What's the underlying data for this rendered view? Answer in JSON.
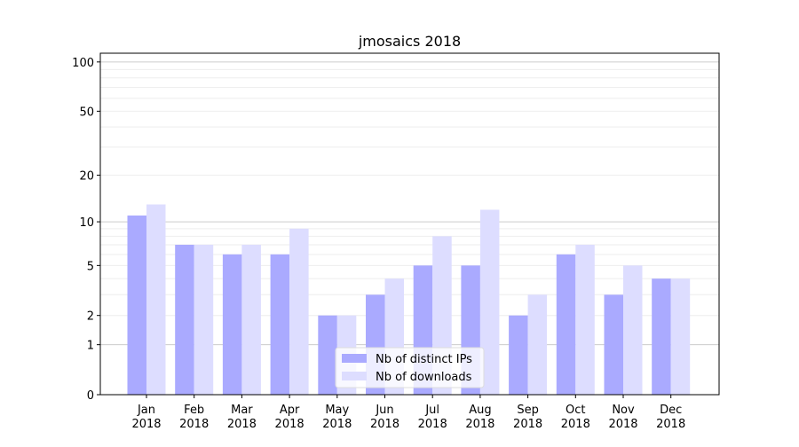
{
  "chart_data": {
    "type": "bar",
    "title": "jmosaics 2018",
    "xlabel": "",
    "ylabel": "",
    "yscale": "log(1+y)",
    "ylim": [
      0,
      113
    ],
    "yticks": [
      0,
      1,
      2,
      5,
      10,
      20,
      50,
      100
    ],
    "grid": true,
    "legend_position": "bottom-center",
    "categories": [
      "Jan\n2018",
      "Feb\n2018",
      "Mar\n2018",
      "Apr\n2018",
      "May\n2018",
      "Jun\n2018",
      "Jul\n2018",
      "Aug\n2018",
      "Sep\n2018",
      "Oct\n2018",
      "Nov\n2018",
      "Dec\n2018"
    ],
    "series": [
      {
        "name": "Nb of distinct IPs",
        "color": "#aaaaff",
        "values": [
          11,
          7,
          6,
          6,
          2,
          3,
          5,
          5,
          2,
          6,
          3,
          4
        ]
      },
      {
        "name": "Nb of downloads",
        "color": "#ddddff",
        "values": [
          13,
          7,
          7,
          9,
          2,
          4,
          8,
          12,
          3,
          7,
          5,
          4
        ]
      }
    ]
  }
}
